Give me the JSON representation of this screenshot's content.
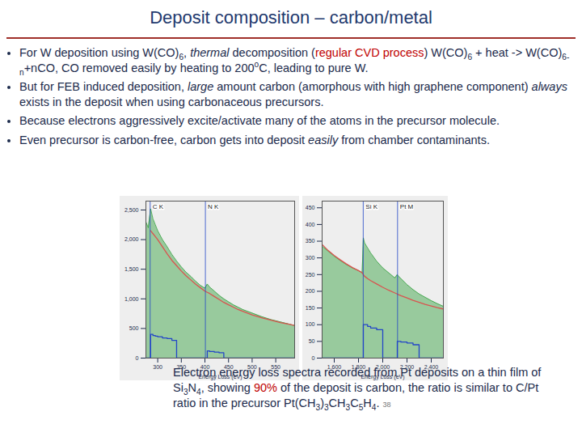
{
  "slide": {
    "title": "Deposit composition – carbon/metal",
    "bullets": [
      [
        {
          "text": "For W deposition using W(CO)"
        },
        {
          "text": "6",
          "style": "sub"
        },
        {
          "text": ", "
        },
        {
          "text": "thermal",
          "style": "italic"
        },
        {
          "text": " decomposition ("
        },
        {
          "text": "regular CVD process",
          "style": "red"
        },
        {
          "text": ") W(CO)"
        },
        {
          "text": "6",
          "style": "sub"
        },
        {
          "text": " + heat -> W(CO)"
        },
        {
          "text": "6-n",
          "style": "sub"
        },
        {
          "text": "+nCO, CO removed easily by heating to 200"
        },
        {
          "text": "o",
          "style": "sup"
        },
        {
          "text": "C, leading to pure W."
        }
      ],
      [
        {
          "text": "But for FEB induced deposition, "
        },
        {
          "text": "large",
          "style": "italic"
        },
        {
          "text": " amount carbon (amorphous with high graphene component) "
        },
        {
          "text": "always",
          "style": "italic"
        },
        {
          "text": " exists in the deposit when using carbonaceous precursors."
        }
      ],
      [
        {
          "text": "Because electrons aggressively excite/activate many of the atoms in the precursor molecule."
        }
      ],
      [
        {
          "text": "Even precursor is carbon-free, carbon gets into deposit "
        },
        {
          "text": "easily",
          "style": "italic"
        },
        {
          "text": " from chamber contaminants."
        }
      ]
    ],
    "caption": [
      {
        "text": "Electron energy loss spectra recorded from Pt deposits on a thin film of Si"
      },
      {
        "text": "3",
        "style": "sub"
      },
      {
        "text": "N"
      },
      {
        "text": "4",
        "style": "sub"
      },
      {
        "text": ", showing "
      },
      {
        "text": "90%",
        "style": "red"
      },
      {
        "text": " of the deposit is carbon, the ratio is similar to C/Pt ratio in the precursor Pt(CH"
      },
      {
        "text": "3",
        "style": "sub"
      },
      {
        "text": ")"
      },
      {
        "text": "3",
        "style": "sub"
      },
      {
        "text": "CH"
      },
      {
        "text": "3",
        "style": "sub"
      },
      {
        "text": "C"
      },
      {
        "text": "5",
        "style": "sub"
      },
      {
        "text": "H"
      },
      {
        "text": "4",
        "style": "sub"
      },
      {
        "text": "."
      }
    ],
    "page_number": "38"
  },
  "chart_data": [
    {
      "type": "line",
      "x_label": "Energy Loss (eV)",
      "xlim": [
        275,
        590
      ],
      "xticks": [
        300,
        350,
        400,
        450,
        500,
        550
      ],
      "ylim": [
        0,
        2650
      ],
      "yticks": [
        0,
        500,
        1000,
        1500,
        2000,
        2500
      ],
      "edges": [
        {
          "label": "C K",
          "value": 284
        },
        {
          "label": "N K",
          "value": 401
        }
      ],
      "x": [
        275,
        280,
        285,
        290,
        295,
        300,
        310,
        320,
        330,
        340,
        350,
        360,
        370,
        380,
        390,
        400,
        405,
        410,
        420,
        430,
        440,
        450,
        460,
        470,
        480,
        490,
        500,
        520,
        540,
        560,
        580,
        590
      ],
      "series": [
        {
          "type": "area",
          "color": "#2e9e3a",
          "values": [
            2300,
            2200,
            2520,
            2350,
            2250,
            2150,
            2000,
            1880,
            1750,
            1640,
            1540,
            1450,
            1380,
            1300,
            1230,
            1180,
            1250,
            1200,
            1130,
            1060,
            1000,
            950,
            900,
            860,
            820,
            790,
            760,
            700,
            650,
            610,
            570,
            550
          ]
        },
        {
          "type": "line",
          "color": "#d9534f",
          "values": [
            null,
            null,
            2150,
            2100,
            2050,
            2000,
            1880,
            1760,
            1650,
            1560,
            1470,
            1390,
            1320,
            1250,
            1190,
            1130,
            1110,
            1090,
            1040,
            990,
            940,
            900,
            860,
            820,
            790,
            760,
            730,
            680,
            640,
            600,
            570,
            550
          ]
        },
        {
          "type": "line",
          "line_style": "step",
          "color": "#2346c8",
          "values": [
            0,
            0,
            400,
            380,
            370,
            360,
            340,
            330,
            300,
            0,
            0,
            0,
            0,
            0,
            0,
            0,
            120,
            110,
            100,
            90,
            0,
            0,
            0,
            0,
            0,
            0,
            0,
            0,
            0,
            0,
            0,
            0
          ]
        }
      ]
    },
    {
      "type": "line",
      "x_label": "Energy Loss (eV)",
      "xlim": [
        1500,
        2500
      ],
      "xticks": [
        1600,
        1800,
        2000,
        2200,
        2400
      ],
      "ylim": [
        0,
        470
      ],
      "yticks": [
        0,
        50,
        100,
        150,
        200,
        250,
        300,
        350,
        400,
        450
      ],
      "edges": [
        {
          "label": "Si K",
          "value": 1839
        },
        {
          "label": "Pt M",
          "value": 2122
        }
      ],
      "x": [
        1500,
        1550,
        1600,
        1650,
        1700,
        1750,
        1800,
        1830,
        1840,
        1850,
        1875,
        1900,
        1950,
        2000,
        2050,
        2100,
        2120,
        2130,
        2150,
        2200,
        2250,
        2300,
        2350,
        2400,
        2450,
        2500
      ],
      "series": [
        {
          "type": "area",
          "color": "#2e9e3a",
          "values": [
            335,
            320,
            305,
            292,
            280,
            270,
            262,
            255,
            360,
            345,
            330,
            315,
            290,
            270,
            255,
            240,
            250,
            245,
            238,
            220,
            205,
            192,
            182,
            172,
            163,
            155
          ]
        },
        {
          "type": "line",
          "color": "#d9534f",
          "values": [
            340,
            322,
            307,
            294,
            282,
            271,
            262,
            256,
            250,
            245,
            238,
            232,
            222,
            212,
            203,
            195,
            192,
            190,
            187,
            180,
            173,
            167,
            161,
            156,
            151,
            147
          ]
        },
        {
          "type": "line",
          "line_style": "step",
          "color": "#2346c8",
          "values": [
            0,
            0,
            0,
            0,
            0,
            0,
            0,
            0,
            100,
            100,
            95,
            90,
            85,
            0,
            0,
            0,
            50,
            50,
            48,
            45,
            40,
            0,
            0,
            0,
            0,
            0
          ]
        }
      ]
    }
  ]
}
